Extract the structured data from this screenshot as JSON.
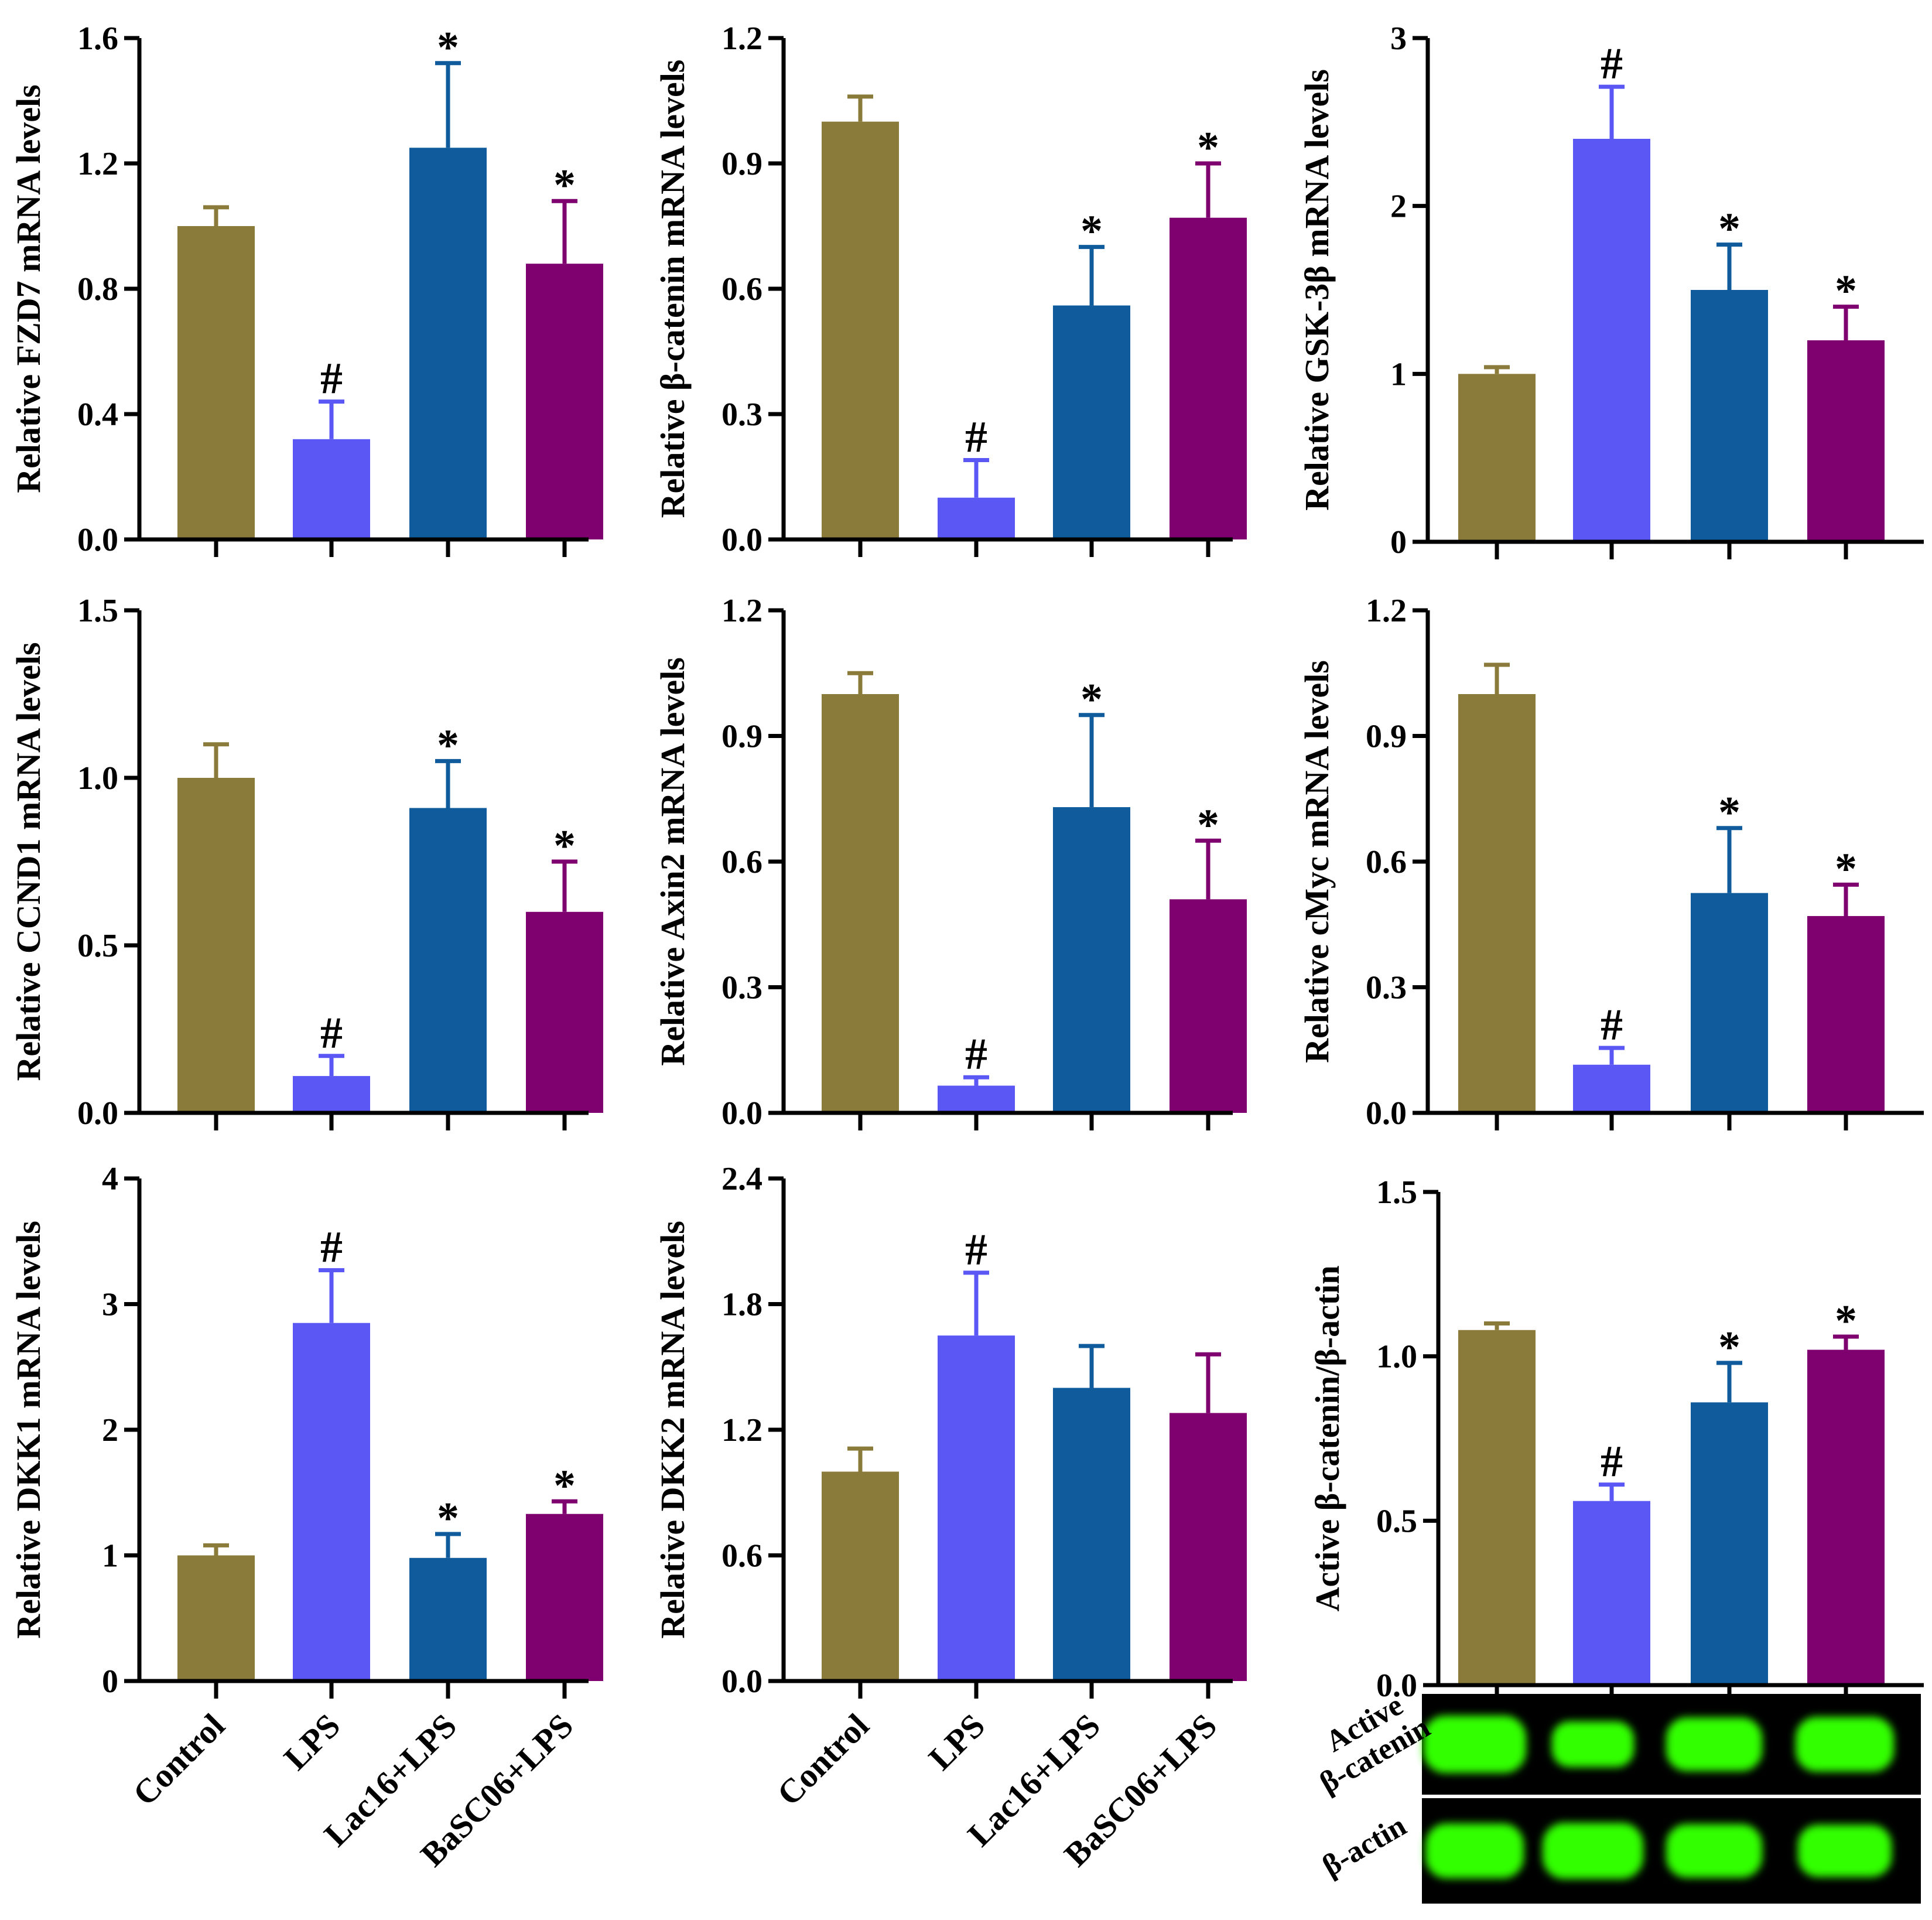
{
  "figure": {
    "colors": [
      "#8B7B3A",
      "#5A57F5",
      "#0F5B9B",
      "#7F0170"
    ],
    "blot_band_color": "#33FF00",
    "blot_background": "#000000"
  },
  "chart_data": [
    {
      "type": "bar",
      "id": "fzd7",
      "categories": [
        "Control",
        "LPS",
        "Lac16+LPS",
        "BaSC06+LPS"
      ],
      "values": [
        1.0,
        0.32,
        1.25,
        0.88
      ],
      "errors": [
        0.06,
        0.12,
        0.27,
        0.2
      ],
      "annotations": [
        "",
        "#",
        "*",
        "*"
      ],
      "ylabel": "Relative FZD7 mRNA levels",
      "ylim": [
        0,
        1.6
      ],
      "yticks": [
        "0.0",
        "0.4",
        "0.8",
        "1.2",
        "1.6"
      ],
      "show_xlabels": false
    },
    {
      "type": "bar",
      "id": "bcatenin",
      "categories": [
        "Control",
        "LPS",
        "Lac16+LPS",
        "BaSC06+LPS"
      ],
      "values": [
        1.0,
        0.1,
        0.56,
        0.77
      ],
      "errors": [
        0.06,
        0.09,
        0.14,
        0.13
      ],
      "annotations": [
        "",
        "#",
        "*",
        "*"
      ],
      "ylabel": "Relative β-catenin mRNA levels",
      "ylim": [
        0,
        1.2
      ],
      "yticks": [
        "0.0",
        "0.3",
        "0.6",
        "0.9",
        "1.2"
      ],
      "show_xlabels": false
    },
    {
      "type": "bar",
      "id": "gsk3b",
      "categories": [
        "Control",
        "LPS",
        "Lac16+LPS",
        "BaSC06+LPS"
      ],
      "values": [
        1.0,
        2.4,
        1.5,
        1.2
      ],
      "errors": [
        0.04,
        0.31,
        0.27,
        0.2
      ],
      "annotations": [
        "",
        "#",
        "*",
        "*"
      ],
      "ylabel": "Relative GSK-3β mRNA levels",
      "ylim": [
        0,
        3
      ],
      "yticks": [
        "0",
        "1",
        "2",
        "3"
      ],
      "show_xlabels": false
    },
    {
      "type": "bar",
      "id": "ccnd1",
      "categories": [
        "Control",
        "LPS",
        "Lac16+LPS",
        "BaSC06+LPS"
      ],
      "values": [
        1.0,
        0.11,
        0.91,
        0.6
      ],
      "errors": [
        0.1,
        0.06,
        0.14,
        0.15
      ],
      "annotations": [
        "",
        "#",
        "*",
        "*"
      ],
      "ylabel": "Relative CCND1 mRNA levels",
      "ylim": [
        0,
        1.5
      ],
      "yticks": [
        "0.0",
        "0.5",
        "1.0",
        "1.5"
      ],
      "show_xlabels": false
    },
    {
      "type": "bar",
      "id": "axin2",
      "categories": [
        "Control",
        "LPS",
        "Lac16+LPS",
        "BaSC06+LPS"
      ],
      "values": [
        1.0,
        0.065,
        0.73,
        0.51
      ],
      "errors": [
        0.05,
        0.02,
        0.22,
        0.14
      ],
      "annotations": [
        "",
        "#",
        "*",
        "*"
      ],
      "ylabel": "Relative Axin2 mRNA levels",
      "ylim": [
        0,
        1.2
      ],
      "yticks": [
        "0.0",
        "0.3",
        "0.6",
        "0.9",
        "1.2"
      ],
      "show_xlabels": false
    },
    {
      "type": "bar",
      "id": "cmyc",
      "categories": [
        "Control",
        "LPS",
        "Lac16+LPS",
        "BaSC06+LPS"
      ],
      "values": [
        1.0,
        0.115,
        0.525,
        0.47
      ],
      "errors": [
        0.07,
        0.04,
        0.155,
        0.075
      ],
      "annotations": [
        "",
        "#",
        "*",
        "*"
      ],
      "ylabel": "Relative cMyc mRNA levels",
      "ylim": [
        0,
        1.2
      ],
      "yticks": [
        "0.0",
        "0.3",
        "0.6",
        "0.9",
        "1.2"
      ],
      "show_xlabels": false
    },
    {
      "type": "bar",
      "id": "dkk1",
      "categories": [
        "Control",
        "LPS",
        "Lac16+LPS",
        "BaSC06+LPS"
      ],
      "values": [
        1.0,
        2.85,
        0.98,
        1.33
      ],
      "errors": [
        0.08,
        0.42,
        0.19,
        0.1
      ],
      "annotations": [
        "",
        "#",
        "*",
        "*"
      ],
      "ylabel": "Relative DKK1 mRNA levels",
      "ylim": [
        0,
        4
      ],
      "yticks": [
        "0",
        "1",
        "2",
        "3",
        "4"
      ],
      "show_xlabels": true
    },
    {
      "type": "bar",
      "id": "dkk2",
      "categories": [
        "Control",
        "LPS",
        "Lac16+LPS",
        "BaSC06+LPS"
      ],
      "values": [
        1.0,
        1.65,
        1.4,
        1.28
      ],
      "errors": [
        0.11,
        0.3,
        0.2,
        0.28
      ],
      "annotations": [
        "",
        "#",
        "",
        ""
      ],
      "ylabel": "Relative DKK2 mRNA levels",
      "ylim": [
        0,
        2.4
      ],
      "yticks": [
        "0.0",
        "0.6",
        "1.2",
        "1.8",
        "2.4"
      ],
      "show_xlabels": true
    },
    {
      "type": "bar",
      "id": "active-bcatenin",
      "categories": [
        "Control",
        "LPS",
        "Lac16+LPS",
        "BaSC06+LPS"
      ],
      "values": [
        1.08,
        0.56,
        0.86,
        1.02
      ],
      "errors": [
        0.02,
        0.05,
        0.12,
        0.04
      ],
      "annotations": [
        "",
        "#",
        "*",
        "*"
      ],
      "ylabel": "Active β-catenin/β-actin",
      "ylim": [
        0,
        1.5
      ],
      "yticks": [
        "0.0",
        "0.5",
        "1.0",
        "1.5"
      ],
      "show_xlabels": false
    }
  ],
  "western_blot": {
    "rows": [
      {
        "label_lines": [
          "Active",
          "β-catenin"
        ],
        "band_intensity": [
          1.0,
          0.55,
          0.85,
          0.9
        ]
      },
      {
        "label_lines": [
          "β-actin"
        ],
        "band_intensity": [
          0.9,
          0.95,
          0.85,
          0.8
        ]
      }
    ]
  }
}
